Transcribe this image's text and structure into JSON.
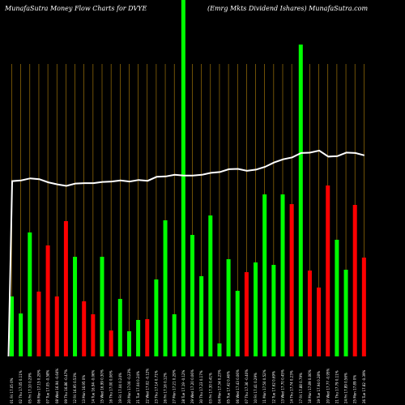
{
  "header": {
    "left_title": "MunafaSutra  Money Flow  Charts for DVYE",
    "right_title": "(Emrg Mkts Dividend Ishares) MunafaSutra.com"
  },
  "colors": {
    "background": "#000000",
    "up": "#00ff00",
    "down": "#ff0000",
    "grid": "#b8860b",
    "price_line": "#ffffff"
  },
  "chart_data": {
    "type": "bar",
    "title": "",
    "xlabel": "",
    "ylabel": "",
    "grid": true,
    "categories": [
      "01 Fri 17.05 0%",
      "02 Thu 17.05 0.11%",
      "05 Fri 17.10 0.29%",
      "06 Mon 17.15 0.29%",
      "07 Tue 17.05 -0.58%",
      "08 Wed 16.94 -0.64%",
      "09 Thu 16.86 -0.47%",
      "12 Fri 16.95 0.53%",
      "13 Mon 16.95 0%",
      "14 Tue 16.94 -0.06%",
      "15 Wed 16.99 0.30%",
      "16 Thu 17.00 0.06%",
      "19 Fri 17.04 0.24%",
      "20 Mon 17.00 -0.23%",
      "21 Tue 17.04 0.24%",
      "22 Wed 17.02 -0.12%",
      "23 Thu 17.14 0.71%",
      "26 Fri 17.16 0.12%",
      "27 Mon 17.21 0.29%",
      "28 Tue 17.19 -0.12%",
      "29 Wed 17.20 0.06%",
      "30 Thu 17.23 0.17%",
      "03 Fri 17.30 0.41%",
      "04 Mon 17.34 0.23%",
      "05 Tue 17.42 0.46%",
      "06 Wed 17.43 0.06%",
      "07 Thu 17.36 -0.40%",
      "10 Fri 17.41 0.29%",
      "11 Mon 17.50 0.52%",
      "12 Tue 17.62 0.69%",
      "13 Wed 17.70 0.45%",
      "14 Thu 17.74 0.23%",
      "17 Fri 17.88 0.79%",
      "18 Mon 17.89 0.06%",
      "19 Tue 17.94 0.28%",
      "20 Wed 17.77 -0.95%",
      "21 Thu 17.79 0.11%",
      "24 Fri 17.89 0.56%",
      "25 Mon 17.89 0%",
      "26 Tue 17.82 -0.39%"
    ],
    "series": [
      {
        "values": [
          74,
          53,
          153,
          80,
          137,
          74,
          167,
          123,
          68,
          52,
          123,
          32,
          71,
          31,
          45,
          46,
          95,
          168,
          52,
          999,
          150,
          99,
          174,
          16,
          120,
          81,
          104,
          116,
          200,
          113,
          200,
          188,
          385,
          106,
          85,
          211,
          144,
          107,
          187,
          122
        ],
        "directions": [
          "up",
          "up",
          "up",
          "down",
          "down",
          "down",
          "down",
          "up",
          "down",
          "down",
          "up",
          "down",
          "up",
          "up",
          "up",
          "down",
          "up",
          "up",
          "up",
          "up",
          "up",
          "up",
          "up",
          "up",
          "up",
          "up",
          "down",
          "up",
          "up",
          "up",
          "up",
          "down",
          "up",
          "down",
          "down",
          "down",
          "up",
          "up",
          "down",
          "down"
        ]
      },
      {
        "values": [
          17.05,
          17.07,
          17.12,
          17.1,
          17.02,
          16.97,
          16.93,
          16.99,
          17.0,
          17.0,
          17.03,
          17.04,
          17.07,
          17.04,
          17.08,
          17.06,
          17.16,
          17.17,
          17.21,
          17.19,
          17.19,
          17.21,
          17.26,
          17.28,
          17.35,
          17.36,
          17.31,
          17.34,
          17.41,
          17.52,
          17.6,
          17.65,
          17.76,
          17.77,
          17.82,
          17.67,
          17.68,
          17.77,
          17.76,
          17.7
        ]
      }
    ]
  }
}
